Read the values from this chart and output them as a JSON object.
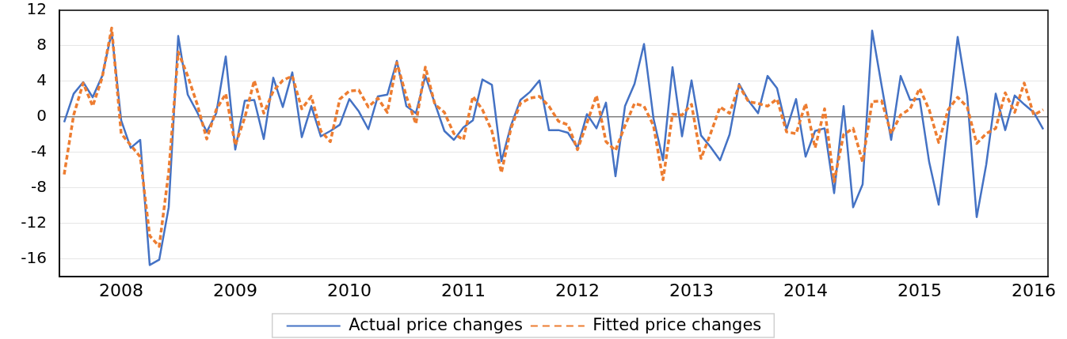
{
  "chart_data": {
    "type": "line",
    "categories": [
      null,
      null,
      null,
      null,
      null,
      null,
      "2008",
      null,
      null,
      null,
      null,
      null,
      null,
      null,
      null,
      null,
      null,
      null,
      "2009",
      null,
      null,
      null,
      null,
      null,
      null,
      null,
      null,
      null,
      null,
      null,
      "2010",
      null,
      null,
      null,
      null,
      null,
      null,
      null,
      null,
      null,
      null,
      null,
      "2011",
      null,
      null,
      null,
      null,
      null,
      null,
      null,
      null,
      null,
      null,
      null,
      "2012",
      null,
      null,
      null,
      null,
      null,
      null,
      null,
      null,
      null,
      null,
      null,
      "2013",
      null,
      null,
      null,
      null,
      null,
      null,
      null,
      null,
      null,
      null,
      null,
      "2014",
      null,
      null,
      null,
      null,
      null,
      null,
      null,
      null,
      null,
      null,
      null,
      "2015",
      null,
      null,
      null,
      null,
      null,
      null,
      null,
      null,
      null,
      null,
      null,
      "2016",
      null
    ],
    "series": [
      {
        "name": "Actual price changes",
        "color": "#4472c4",
        "line_style": "solid",
        "values": [
          -0.6,
          2.6,
          3.9,
          2.2,
          4.6,
          9.5,
          -0.4,
          -3.5,
          -2.6,
          -16.7,
          -16.1,
          -10.2,
          9.1,
          2.5,
          0.5,
          -1.7,
          0.4,
          6.8,
          -3.7,
          1.8,
          1.9,
          -2.5,
          4.4,
          1.1,
          5.0,
          -2.3,
          1.2,
          -2.2,
          -1.6,
          -0.9,
          2.0,
          0.6,
          -1.4,
          2.3,
          2.5,
          6.3,
          1.2,
          0.4,
          4.6,
          1.5,
          -1.6,
          -2.6,
          -1.2,
          -0.4,
          4.2,
          3.6,
          -5.0,
          -1.0,
          1.9,
          2.8,
          4.1,
          -1.5,
          -1.5,
          -1.8,
          -3.5,
          0.3,
          -1.3,
          1.6,
          -6.7,
          1.2,
          3.7,
          8.2,
          -0.2,
          -4.9,
          5.6,
          -2.2,
          4.1,
          -2.1,
          -3.4,
          -4.9,
          -2.0,
          3.7,
          1.8,
          0.4,
          4.6,
          3.2,
          -1.4,
          2.0,
          -4.5,
          -1.6,
          -1.3,
          -8.6,
          1.2,
          -10.2,
          -7.6,
          9.7,
          3.5,
          -2.6,
          4.6,
          1.9,
          2.0,
          -5.1,
          -9.9,
          -0.5,
          9.0,
          2.4,
          -11.3,
          -5.4,
          2.6,
          -1.5,
          2.4,
          1.4,
          0.5,
          -1.4
        ]
      },
      {
        "name": "Fitted price changes",
        "color": "#ed7d31",
        "line_style": "dashed",
        "values": [
          -6.5,
          0.2,
          3.8,
          1.2,
          4.4,
          10.0,
          -1.9,
          -3.2,
          -4.5,
          -13.4,
          -14.6,
          -6.2,
          7.3,
          4.6,
          1.4,
          -2.5,
          0.8,
          2.6,
          -3.2,
          -0.1,
          4.1,
          0.4,
          2.9,
          4.1,
          4.6,
          0.9,
          2.3,
          -1.6,
          -2.8,
          2.0,
          2.9,
          3.0,
          1.1,
          2.1,
          0.5,
          6.1,
          2.3,
          -0.8,
          5.6,
          1.4,
          0.5,
          -1.9,
          -2.6,
          2.3,
          0.8,
          -1.6,
          -6.3,
          -1.3,
          1.5,
          2.1,
          2.3,
          1.2,
          -0.5,
          -0.9,
          -3.7,
          -0.7,
          2.4,
          -2.8,
          -3.8,
          -1.0,
          1.5,
          1.2,
          -1.0,
          -7.1,
          0.3,
          0.2,
          1.4,
          -4.7,
          -1.9,
          1.1,
          0.4,
          3.5,
          1.7,
          1.5,
          1.2,
          2.0,
          -1.7,
          -1.9,
          1.5,
          -3.5,
          0.9,
          -7.3,
          -2.0,
          -1.3,
          -5.1,
          1.7,
          1.8,
          -1.9,
          0.2,
          0.9,
          3.2,
          0.8,
          -2.9,
          0.8,
          2.2,
          1.1,
          -3.0,
          -1.9,
          -1.3,
          2.7,
          0.5,
          3.8,
          0.2,
          0.8
        ]
      }
    ],
    "ylim": [
      -18,
      12
    ],
    "yticks": [
      -16,
      -12,
      -8,
      -4,
      0,
      4,
      8,
      12
    ],
    "grid": "y",
    "legend": "bottom"
  }
}
